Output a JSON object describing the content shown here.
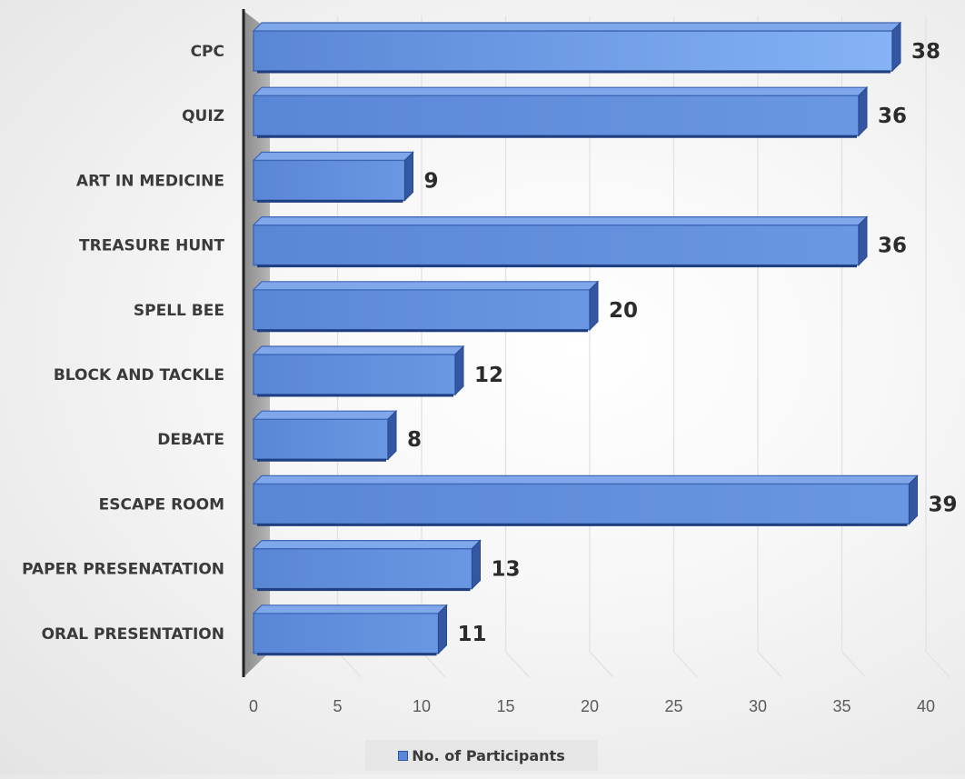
{
  "chart_data": {
    "type": "bar",
    "orientation": "horizontal",
    "categories": [
      "CPC",
      "QUIZ",
      "ART IN MEDICINE",
      "TREASURE HUNT",
      "SPELL BEE",
      "BLOCK AND TACKLE",
      "DEBATE",
      "ESCAPE ROOM",
      "PAPER PRESENATATION",
      "ORAL PRESENTATION"
    ],
    "series": [
      {
        "name": "No. of Participants",
        "values": [
          38,
          36,
          9,
          36,
          20,
          12,
          8,
          39,
          13,
          11
        ],
        "color": "#5b87d8"
      }
    ],
    "data_labels": [
      "38",
      "36",
      "9",
      "36",
      "20",
      "12",
      "8",
      "39",
      "13",
      "11"
    ],
    "xlim": [
      0,
      40
    ],
    "x_ticks": [
      0,
      5,
      10,
      15,
      20,
      25,
      30,
      35,
      40
    ],
    "x_tick_labels": [
      "0",
      "5",
      "10",
      "15",
      "20",
      "25",
      "30",
      "35",
      "40"
    ],
    "title": "",
    "xlabel": "",
    "ylabel": "",
    "grid": true,
    "legend_position": "bottom",
    "legend_label": "No. of Participants",
    "style": "3d"
  }
}
